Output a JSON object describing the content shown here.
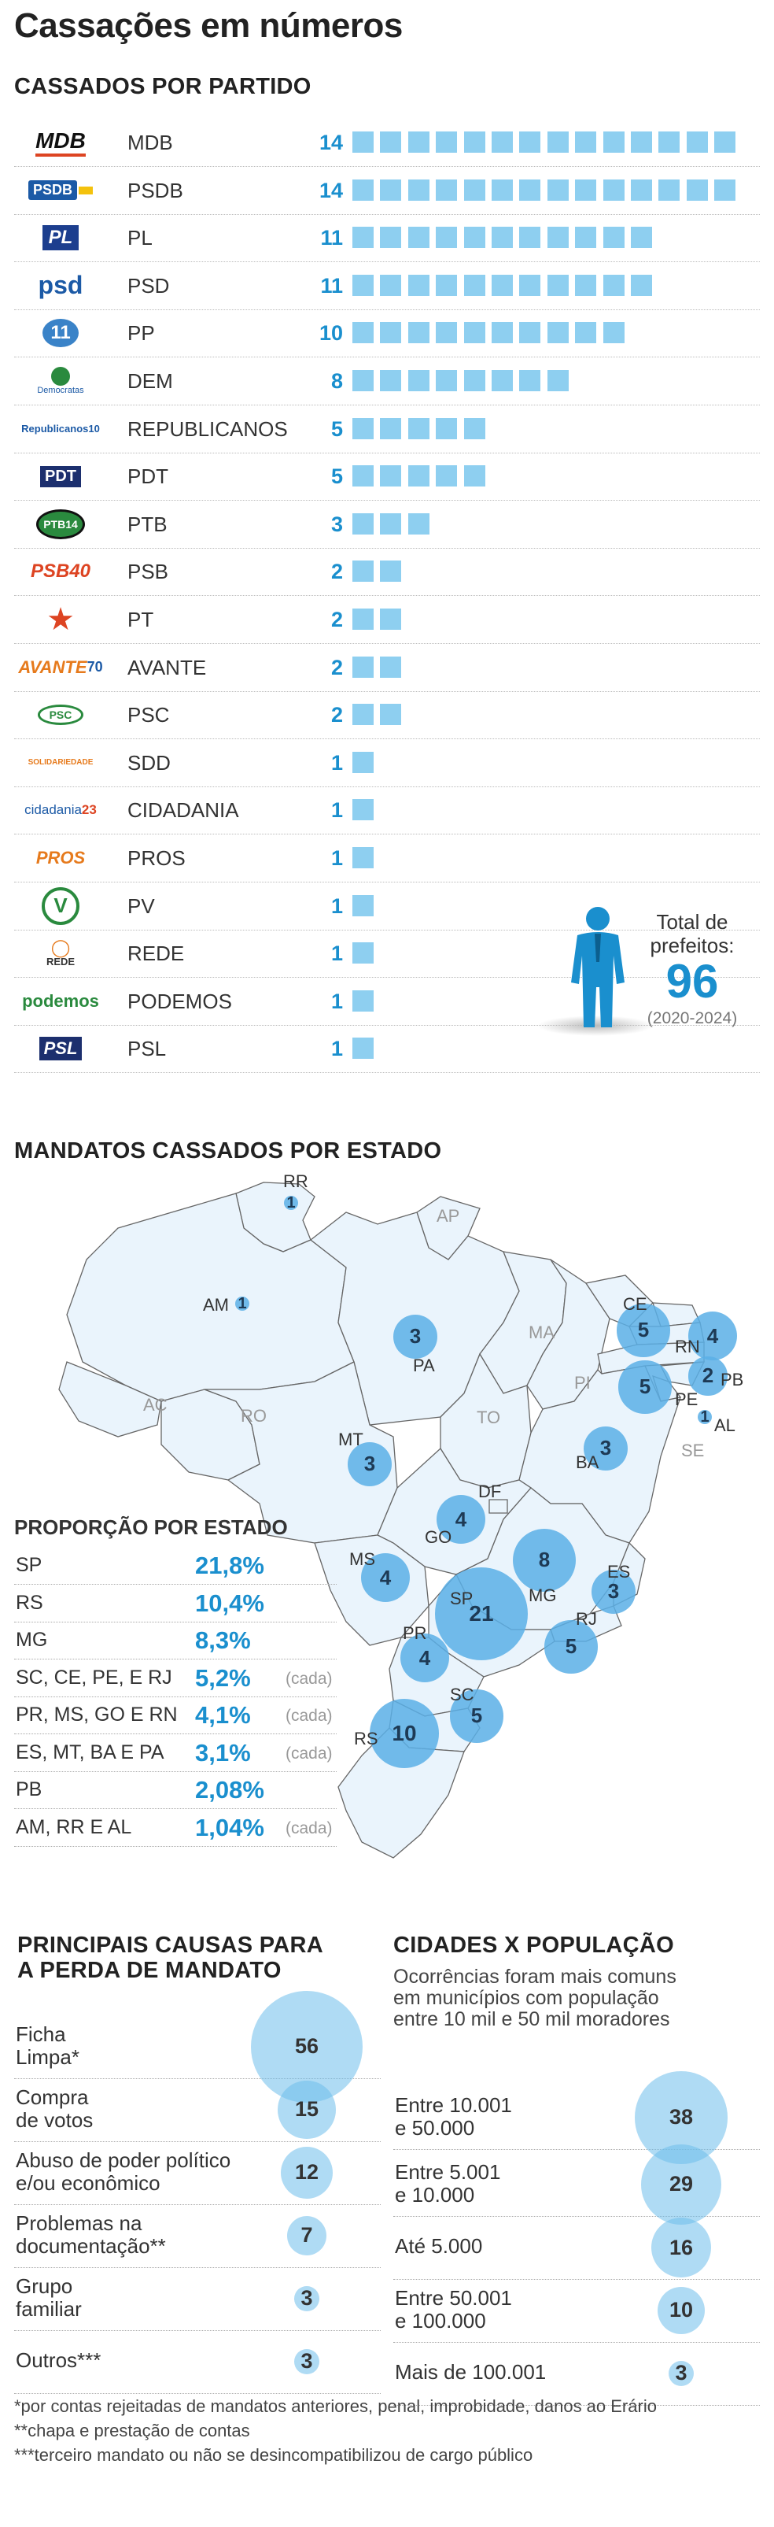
{
  "title": "Cassações em números",
  "parties_section": {
    "heading": "CASSADOS POR PARTIDO",
    "items": [
      {
        "name": "MDB",
        "count": "14",
        "logo": "MDB"
      },
      {
        "name": "PSDB",
        "count": "14",
        "logo": "PSDB"
      },
      {
        "name": "PL",
        "count": "11",
        "logo": "PL"
      },
      {
        "name": "PSD",
        "count": "11",
        "logo": "psd"
      },
      {
        "name": "PP",
        "count": "10",
        "logo": "11"
      },
      {
        "name": "DEM",
        "count": "8",
        "logo": "Democratas"
      },
      {
        "name": "REPUBLICANOS",
        "count": "5",
        "logo": "Republicanos10"
      },
      {
        "name": "PDT",
        "count": "5",
        "logo": "PDT"
      },
      {
        "name": "PTB",
        "count": "3",
        "logo": "PTB14"
      },
      {
        "name": "PSB",
        "count": "2",
        "logo": "PSB40"
      },
      {
        "name": "PT",
        "count": "2",
        "logo": "PT"
      },
      {
        "name": "AVANTE",
        "count": "2",
        "logo": "AVANTE70"
      },
      {
        "name": "PSC",
        "count": "2",
        "logo": "PSC"
      },
      {
        "name": "SDD",
        "count": "1",
        "logo": "SOLIDARIEDADE"
      },
      {
        "name": "CIDADANIA",
        "count": "1",
        "logo": "cidadania23"
      },
      {
        "name": "PROS",
        "count": "1",
        "logo": "PROS"
      },
      {
        "name": "PV",
        "count": "1",
        "logo": "V"
      },
      {
        "name": "REDE",
        "count": "1",
        "logo": "REDE"
      },
      {
        "name": "PODEMOS",
        "count": "1",
        "logo": "podemos"
      },
      {
        "name": "PSL",
        "count": "1",
        "logo": "PSL"
      }
    ],
    "total": {
      "label_line1": "Total de",
      "label_line2": "prefeitos:",
      "value": "96",
      "period": "(2020-2024)"
    }
  },
  "map_section": {
    "heading": "MANDATOS CASSADOS POR ESTADO",
    "states_with_cases": [
      {
        "uf": "RR",
        "n": "1"
      },
      {
        "uf": "AM",
        "n": "1"
      },
      {
        "uf": "PA",
        "n": "3"
      },
      {
        "uf": "MT",
        "n": "3"
      },
      {
        "uf": "CE",
        "n": "5"
      },
      {
        "uf": "RN",
        "n": "4"
      },
      {
        "uf": "PB",
        "n": "2"
      },
      {
        "uf": "PE",
        "n": "5"
      },
      {
        "uf": "AL",
        "n": "1"
      },
      {
        "uf": "BA",
        "n": "3"
      },
      {
        "uf": "GO",
        "n": "4"
      },
      {
        "uf": "MS",
        "n": "4"
      },
      {
        "uf": "MG",
        "n": "8"
      },
      {
        "uf": "ES",
        "n": "3"
      },
      {
        "uf": "SP",
        "n": "21"
      },
      {
        "uf": "RJ",
        "n": "5"
      },
      {
        "uf": "PR",
        "n": "4"
      },
      {
        "uf": "SC",
        "n": "5"
      },
      {
        "uf": "RS",
        "n": "10"
      }
    ],
    "states_without": [
      "AP",
      "MA",
      "PI",
      "AC",
      "RO",
      "TO",
      "SE",
      "DF"
    ],
    "proportion": {
      "heading": "PROPORÇÃO POR ESTADO",
      "rows": [
        {
          "label": "SP",
          "value": "21,8%",
          "note": ""
        },
        {
          "label": "RS",
          "value": "10,4%",
          "note": ""
        },
        {
          "label": "MG",
          "value": "8,3%",
          "note": ""
        },
        {
          "label": "SC, CE, PE, E RJ",
          "value": "5,2%",
          "note": "(cada)"
        },
        {
          "label": "PR, MS, GO E RN",
          "value": "4,1%",
          "note": "(cada)"
        },
        {
          "label": "ES, MT, BA E PA",
          "value": "3,1%",
          "note": "(cada)"
        },
        {
          "label": "PB",
          "value": "2,08%",
          "note": ""
        },
        {
          "label": "AM, RR E AL",
          "value": "1,04%",
          "note": "(cada)"
        }
      ]
    }
  },
  "causes": {
    "heading_line1": "PRINCIPAIS CAUSAS PARA",
    "heading_line2": "A PERDA DE MANDATO",
    "items": [
      {
        "l1": "Ficha",
        "l2": "Limpa*",
        "n": "56"
      },
      {
        "l1": "Compra",
        "l2": "de votos",
        "n": "15"
      },
      {
        "l1": "Abuso de poder político",
        "l2": "e/ou econômico",
        "n": "12"
      },
      {
        "l1": "Problemas na",
        "l2": "documentação**",
        "n": "7"
      },
      {
        "l1": "Grupo",
        "l2": "familiar",
        "n": "3"
      },
      {
        "l1": "Outros***",
        "l2": "",
        "n": "3"
      }
    ]
  },
  "population": {
    "heading": "CIDADES X POPULAÇÃO",
    "desc_line1": "Ocorrências foram mais comuns",
    "desc_line2": "em municípios com população",
    "desc_line3": "entre 10 mil e 50 mil moradores",
    "items": [
      {
        "l1": "Entre 10.001",
        "l2": "e 50.000",
        "n": "38"
      },
      {
        "l1": "Entre 5.001",
        "l2": "e 10.000",
        "n": "29"
      },
      {
        "l1": "Até 5.000",
        "l2": "",
        "n": "16"
      },
      {
        "l1": "Entre 50.001",
        "l2": "e 100.000",
        "n": "10"
      },
      {
        "l1": "Mais de 100.001",
        "l2": "",
        "n": "3"
      }
    ]
  },
  "footnotes": [
    "*por contas rejeitadas de mandatos anteriores, penal, improbidade, danos ao Erário",
    "**chapa e prestação de contas",
    "***terceiro mandato ou não se desincompatibilizou de cargo público"
  ],
  "chart_data": [
    {
      "type": "bar",
      "title": "CASSADOS POR PARTIDO",
      "categories": [
        "MDB",
        "PSDB",
        "PL",
        "PSD",
        "PP",
        "DEM",
        "REPUBLICANOS",
        "PDT",
        "PTB",
        "PSB",
        "PT",
        "AVANTE",
        "PSC",
        "SDD",
        "CIDADANIA",
        "PROS",
        "PV",
        "REDE",
        "PODEMOS",
        "PSL"
      ],
      "values": [
        14,
        14,
        11,
        11,
        10,
        8,
        5,
        5,
        3,
        2,
        2,
        2,
        2,
        1,
        1,
        1,
        1,
        1,
        1,
        1
      ]
    },
    {
      "type": "scatter",
      "title": "MANDATOS CASSADOS POR ESTADO",
      "categories": [
        "RR",
        "AM",
        "PA",
        "MT",
        "CE",
        "RN",
        "PB",
        "PE",
        "AL",
        "BA",
        "GO",
        "MS",
        "MG",
        "ES",
        "SP",
        "RJ",
        "PR",
        "SC",
        "RS"
      ],
      "values": [
        1,
        1,
        3,
        3,
        5,
        4,
        2,
        5,
        1,
        3,
        4,
        4,
        8,
        3,
        21,
        5,
        4,
        5,
        10
      ]
    },
    {
      "type": "table",
      "title": "PROPORÇÃO POR ESTADO",
      "categories": [
        "SP",
        "RS",
        "MG",
        "SC, CE, PE, E RJ",
        "PR, MS, GO E RN",
        "ES, MT, BA E PA",
        "PB",
        "AM, RR E AL"
      ],
      "values": [
        21.8,
        10.4,
        8.3,
        5.2,
        4.1,
        3.1,
        2.08,
        1.04
      ]
    },
    {
      "type": "scatter",
      "title": "PRINCIPAIS CAUSAS PARA A PERDA DE MANDATO",
      "categories": [
        "Ficha Limpa*",
        "Compra de votos",
        "Abuso de poder político e/ou econômico",
        "Problemas na documentação**",
        "Grupo familiar",
        "Outros***"
      ],
      "values": [
        56,
        15,
        12,
        7,
        3,
        3
      ]
    },
    {
      "type": "scatter",
      "title": "CIDADES X POPULAÇÃO",
      "categories": [
        "Entre 10.001 e 50.000",
        "Entre 5.001 e 10.000",
        "Até 5.000",
        "Entre 50.001 e 100.000",
        "Mais de 100.001"
      ],
      "values": [
        38,
        29,
        16,
        10,
        3
      ]
    }
  ]
}
